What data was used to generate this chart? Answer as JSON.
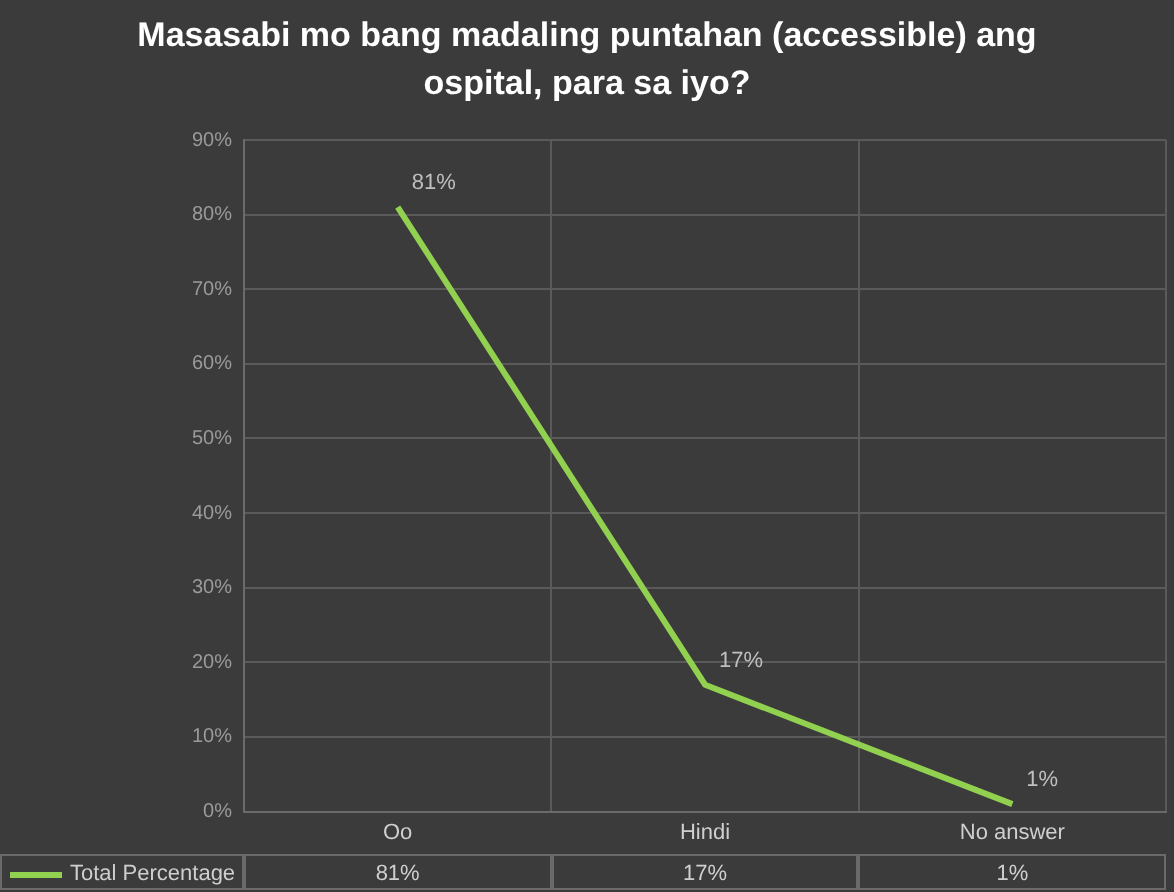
{
  "chart_data": {
    "type": "line",
    "title": "Masasabi mo bang madaling puntahan (accessible) ang ospital, para sa iyo?",
    "categories": [
      "Oo",
      "Hindi",
      "No answer"
    ],
    "series": [
      {
        "name": "Total Percentage",
        "color": "#92d050",
        "values": [
          81,
          17,
          1
        ],
        "value_labels": [
          "81%",
          "17%",
          "1%"
        ]
      }
    ],
    "ylim": [
      0,
      90
    ],
    "yticks": [
      {
        "value": 0,
        "label": "0%"
      },
      {
        "value": 10,
        "label": "10%"
      },
      {
        "value": 20,
        "label": "20%"
      },
      {
        "value": 30,
        "label": "30%"
      },
      {
        "value": 40,
        "label": "40%"
      },
      {
        "value": 50,
        "label": "50%"
      },
      {
        "value": 60,
        "label": "60%"
      },
      {
        "value": 70,
        "label": "70%"
      },
      {
        "value": 80,
        "label": "80%"
      },
      {
        "value": 90,
        "label": "90%"
      }
    ],
    "grid": true,
    "legend": "bottom",
    "marker": "none",
    "line_style": "solid"
  }
}
